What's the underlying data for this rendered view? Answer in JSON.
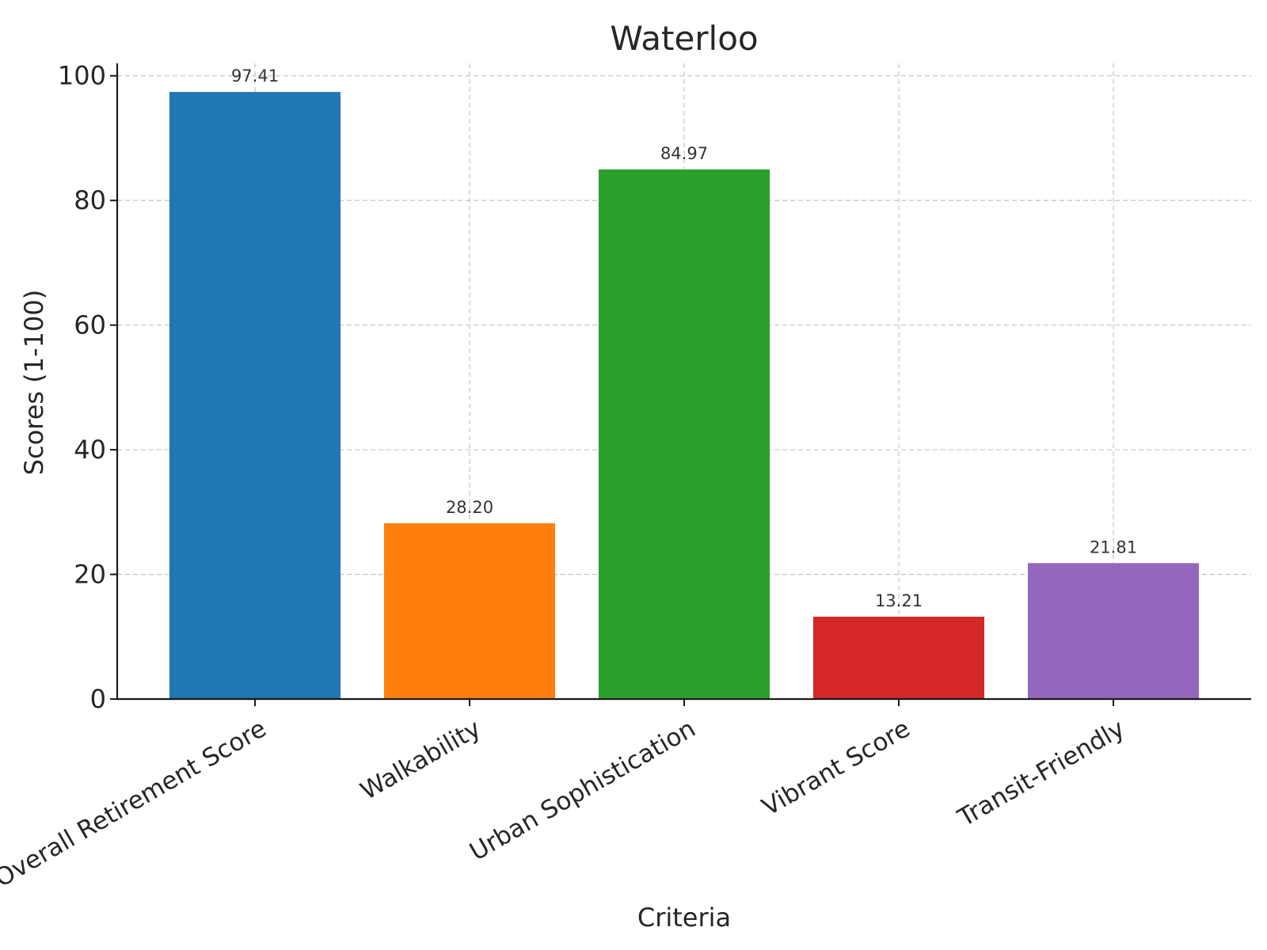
{
  "chart_data": {
    "type": "bar",
    "title": "Waterloo",
    "xlabel": "Criteria",
    "ylabel": "Scores (1-100)",
    "ylim": [
      0,
      102
    ],
    "yticks": [
      0,
      20,
      40,
      60,
      80,
      100
    ],
    "grid": true,
    "categories": [
      "Overall Retirement Score",
      "Walkability",
      "Urban Sophistication",
      "Vibrant Score",
      "Transit-Friendly"
    ],
    "values": [
      97.41,
      28.2,
      84.97,
      13.21,
      21.81
    ],
    "value_labels": [
      "97.41",
      "28.20",
      "84.97",
      "13.21",
      "21.81"
    ],
    "colors": [
      "#1f77b4",
      "#ff7f0e",
      "#2ca02c",
      "#d62728",
      "#9467bd"
    ]
  }
}
